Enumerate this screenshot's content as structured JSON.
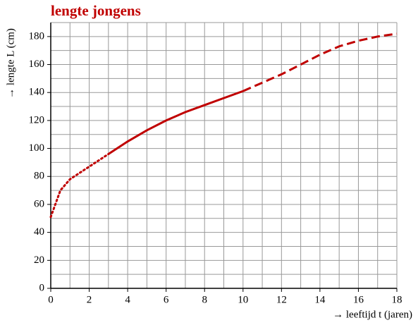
{
  "chart_data": {
    "type": "line",
    "title": "lengte jongens",
    "x_label": "→ leeftijd t (jaren)",
    "y_label": "→ lengte L (cm)",
    "x": [
      0,
      0.5,
      1,
      2,
      3,
      4,
      5,
      6,
      7,
      8,
      9,
      10,
      11,
      12,
      13,
      14,
      15,
      16,
      17,
      18
    ],
    "series": [
      {
        "style": "dotted",
        "color": "#c00000",
        "values": [
          51,
          70,
          78,
          87,
          96,
          null,
          null,
          null,
          null,
          null,
          null,
          null,
          null,
          null,
          null,
          null,
          null,
          null,
          null,
          null
        ]
      },
      {
        "style": "solid",
        "color": "#c00000",
        "values": [
          null,
          null,
          null,
          null,
          96,
          105,
          113,
          120,
          126,
          131,
          136,
          141,
          null,
          null,
          null,
          null,
          null,
          null,
          null,
          null
        ]
      },
      {
        "style": "dashed",
        "color": "#c00000",
        "values": [
          null,
          null,
          null,
          null,
          null,
          null,
          null,
          null,
          null,
          null,
          null,
          141,
          147,
          153,
          160,
          167,
          173,
          177,
          180,
          182
        ]
      }
    ],
    "xlim": [
      0,
      18
    ],
    "ylim": [
      0,
      190
    ],
    "xticks": [
      0,
      2,
      4,
      6,
      8,
      10,
      12,
      14,
      16,
      18
    ],
    "yticks": [
      0,
      20,
      40,
      60,
      80,
      100,
      120,
      140,
      160,
      180
    ],
    "xgrid": [
      1,
      2,
      3,
      4,
      5,
      6,
      7,
      8,
      9,
      10,
      11,
      12,
      13,
      14,
      15,
      16,
      17,
      18
    ],
    "ygrid": [
      10,
      20,
      30,
      40,
      50,
      60,
      70,
      80,
      90,
      100,
      110,
      120,
      130,
      140,
      150,
      160,
      170,
      180,
      190
    ]
  }
}
